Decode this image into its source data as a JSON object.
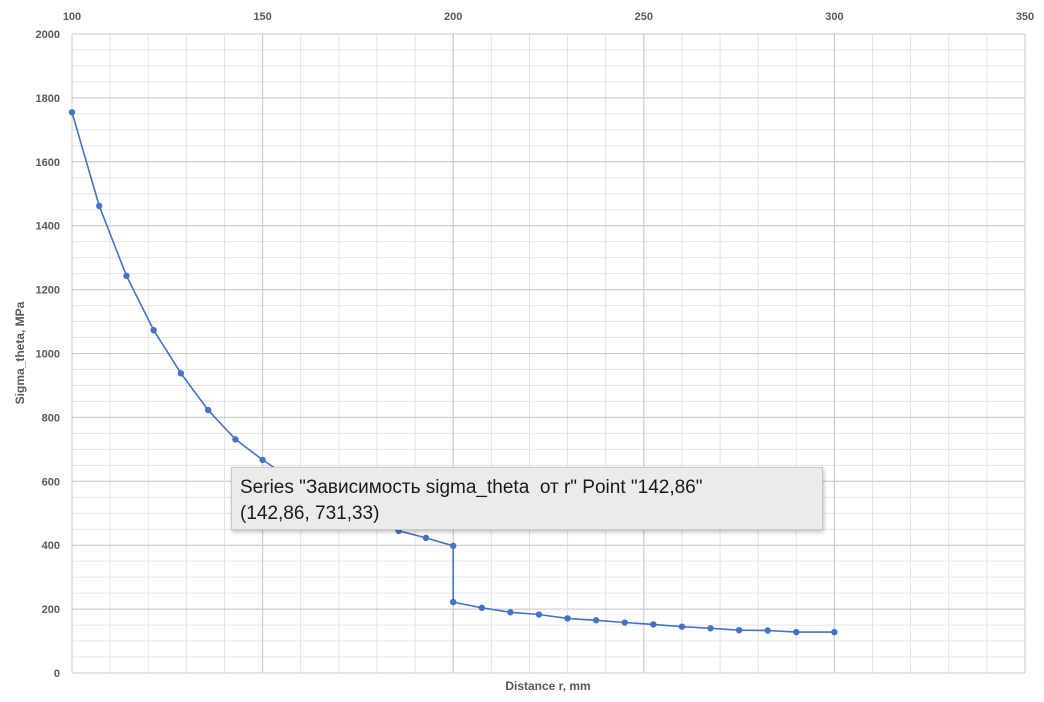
{
  "chart_data": {
    "type": "scatter",
    "title": "",
    "xlabel": "Distance r, mm",
    "ylabel": "Sigma_theta, MPa",
    "xlim": [
      100,
      350
    ],
    "ylim": [
      0,
      2000
    ],
    "x_major_ticks": [
      100,
      150,
      200,
      250,
      300,
      350
    ],
    "y_major_ticks": [
      0,
      200,
      400,
      600,
      800,
      1000,
      1200,
      1400,
      1600,
      1800,
      2000
    ],
    "x_minor_step": 10,
    "y_minor_step": 50,
    "x_axis_position": "top",
    "grid": true,
    "legend": "none",
    "series": [
      {
        "color": "#4472c4",
        "x": [
          100,
          107.14,
          114.29,
          121.43,
          128.57,
          135.71,
          142.86,
          150,
          157.14,
          164.29,
          171.43,
          178.57,
          185.71,
          192.86,
          200,
          200,
          207.5,
          215,
          222.5,
          230,
          237.5,
          245,
          252.5,
          260,
          267.5,
          275,
          282.5,
          290,
          300
        ],
        "y": [
          1755,
          1462,
          1243,
          1073,
          938,
          823,
          731.33,
          667,
          610,
          560,
          515,
          475,
          445,
          423,
          398,
          222,
          204,
          190,
          183,
          171,
          165,
          158,
          152,
          145,
          140,
          134,
          133,
          128,
          128
        ]
      }
    ]
  },
  "tooltip": {
    "line1": "Series \"Зависимость sigma_theta  от r\" Point \"142,86\"",
    "line2": "(142,86, 731,33)"
  }
}
